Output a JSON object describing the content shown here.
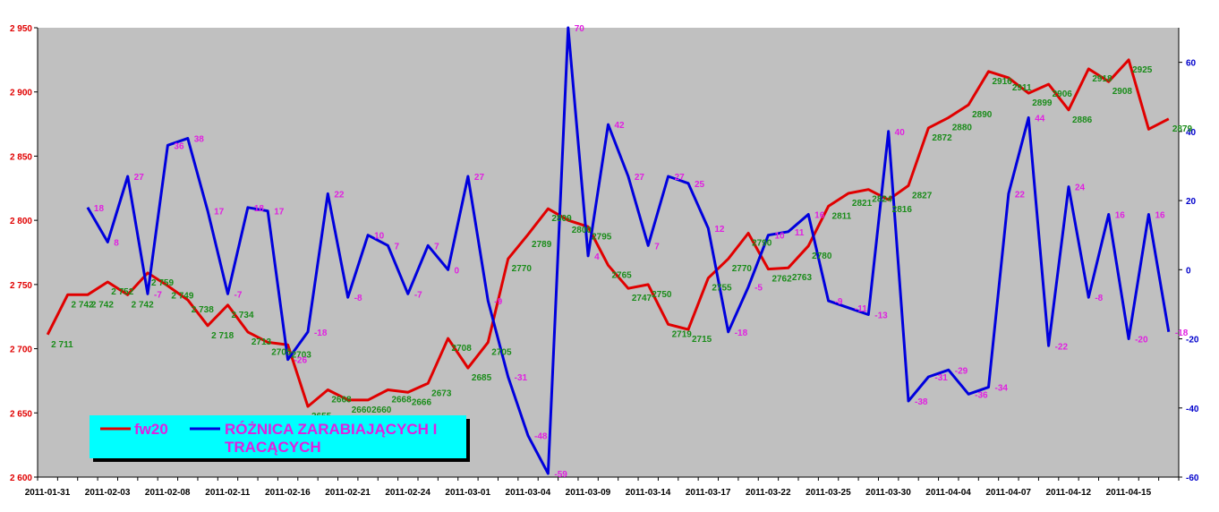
{
  "chart_data": {
    "type": "line",
    "x": [
      "2011-01-31",
      "2011-02-01",
      "2011-02-02",
      "2011-02-03",
      "2011-02-04",
      "2011-02-07",
      "2011-02-08",
      "2011-02-09",
      "2011-02-10",
      "2011-02-11",
      "2011-02-14",
      "2011-02-15",
      "2011-02-16",
      "2011-02-17",
      "2011-02-18",
      "2011-02-21",
      "2011-02-22",
      "2011-02-23",
      "2011-02-24",
      "2011-02-25",
      "2011-02-28",
      "2011-03-01",
      "2011-03-02",
      "2011-03-03",
      "2011-03-04",
      "2011-03-07",
      "2011-03-08",
      "2011-03-09",
      "2011-03-10",
      "2011-03-11",
      "2011-03-14",
      "2011-03-15",
      "2011-03-16",
      "2011-03-17",
      "2011-03-18",
      "2011-03-21",
      "2011-03-22",
      "2011-03-23",
      "2011-03-24",
      "2011-03-25",
      "2011-03-28",
      "2011-03-29",
      "2011-03-30",
      "2011-03-31",
      "2011-04-01",
      "2011-04-04",
      "2011-04-05",
      "2011-04-06",
      "2011-04-07",
      "2011-04-08",
      "2011-04-11",
      "2011-04-12",
      "2011-04-13",
      "2011-04-14",
      "2011-04-15",
      "2011-04-18",
      "2011-04-19"
    ],
    "x_tick_labels": [
      "2011-01-31",
      "2011-02-03",
      "2011-02-08",
      "2011-02-11",
      "2011-02-16",
      "2011-02-21",
      "2011-02-24",
      "2011-03-01",
      "2011-03-04",
      "2011-03-09",
      "2011-03-14",
      "2011-03-17",
      "2011-03-22",
      "2011-03-25",
      "2011-03-30",
      "2011-04-04",
      "2011-04-07",
      "2011-04-12",
      "2011-04-15"
    ],
    "series": [
      {
        "name": "fw20",
        "axis": "left",
        "color": "#e00000",
        "values": [
          2711,
          2742,
          2742,
          2752,
          2742,
          2759,
          2749,
          2738,
          2718,
          2734,
          2713,
          2705,
          2703,
          2655,
          2668,
          2660,
          2660,
          2668,
          2666,
          2673,
          2708,
          2685,
          2705,
          2770,
          2789,
          2809,
          2800,
          2795,
          2765,
          2747,
          2750,
          2719,
          2715,
          2755,
          2770,
          2790,
          2762,
          2763,
          2780,
          2811,
          2821,
          2824,
          2816,
          2827,
          2872,
          2880,
          2890,
          2916,
          2911,
          2899,
          2906,
          2886,
          2918,
          2908,
          2925,
          2871,
          2879
        ],
        "labels": [
          "2 711",
          "2 742",
          "2 742",
          "2 752",
          "2 742",
          "2 759",
          "2 749",
          "2 738",
          "2 718",
          "2 734",
          "2713",
          "2705",
          "2703",
          "2655",
          "2668",
          "2660",
          "2660",
          "2668",
          "2666",
          "2673",
          "2708",
          "2685",
          "2705",
          "2770",
          "2789",
          "2809",
          "2800",
          "2795",
          "2765",
          "2747",
          "2750",
          "2719",
          "2715",
          "2755",
          "2770",
          "2790",
          "2762",
          "2763",
          "2780",
          "2811",
          "2821",
          "2824",
          "2816",
          "2827",
          "2872",
          "2880",
          "2890",
          "2916",
          "2911",
          "2899",
          "2906",
          "2886",
          "2918",
          "2908",
          "2925",
          "2871",
          "2879"
        ],
        "show_label": [
          true,
          true,
          true,
          true,
          true,
          true,
          true,
          true,
          true,
          true,
          true,
          true,
          true,
          true,
          true,
          true,
          true,
          true,
          true,
          true,
          true,
          true,
          true,
          true,
          true,
          true,
          true,
          true,
          true,
          true,
          true,
          true,
          true,
          true,
          true,
          true,
          true,
          true,
          true,
          true,
          true,
          true,
          true,
          true,
          true,
          true,
          true,
          true,
          true,
          true,
          true,
          true,
          true,
          true,
          true,
          false,
          true
        ]
      },
      {
        "name": "RÓŻNICA ZARABIAJĄCYCH I TRACĄCYCH",
        "axis": "right",
        "color": "#0000dd",
        "values": [
          null,
          null,
          18,
          8,
          27,
          -7,
          36,
          38,
          17,
          -7,
          18,
          17,
          -26,
          -18,
          22,
          -8,
          10,
          7,
          -7,
          7,
          0,
          27,
          -9,
          -31,
          -48,
          -59,
          70,
          4,
          42,
          27,
          7,
          27,
          25,
          12,
          -18,
          -5,
          10,
          11,
          16,
          -9,
          -11,
          -13,
          40,
          -38,
          -31,
          -29,
          -36,
          -34,
          22,
          44,
          -22,
          24,
          -8,
          16,
          -20,
          16,
          -18
        ],
        "show_label": [
          false,
          false,
          true,
          true,
          true,
          true,
          true,
          true,
          true,
          true,
          true,
          true,
          true,
          true,
          true,
          true,
          true,
          true,
          true,
          true,
          true,
          true,
          true,
          true,
          true,
          true,
          true,
          true,
          true,
          true,
          true,
          true,
          true,
          true,
          true,
          true,
          true,
          true,
          true,
          true,
          true,
          true,
          true,
          true,
          true,
          true,
          true,
          true,
          true,
          true,
          true,
          true,
          true,
          true,
          true,
          true,
          true
        ]
      }
    ],
    "y_left": {
      "min": 2600,
      "max": 2950,
      "ticks": [
        2600,
        2650,
        2700,
        2750,
        2800,
        2850,
        2900,
        2950
      ],
      "tick_labels": [
        "2 600",
        "2 650",
        "2 700",
        "2 750",
        "2 800",
        "2 850",
        "2 900",
        "2 950"
      ]
    },
    "y_right": {
      "min": -60,
      "max": 70,
      "ticks": [
        -60,
        -40,
        -20,
        0,
        20,
        40,
        60
      ],
      "tick_labels": [
        "-60",
        "-40",
        "-20",
        "0",
        "20",
        "40",
        "60"
      ]
    },
    "grid": false,
    "plot_background": "#c0c0c0",
    "legend": {
      "placement": "bottom-left",
      "background": "#00ffff",
      "items": [
        {
          "label": "fw20",
          "color": "#e00000"
        },
        {
          "label_line1": "RÓŻNICA ZARABIAJĄCYCH I",
          "label_line2": "TRACĄCYCH",
          "color": "#0000dd"
        }
      ]
    }
  }
}
